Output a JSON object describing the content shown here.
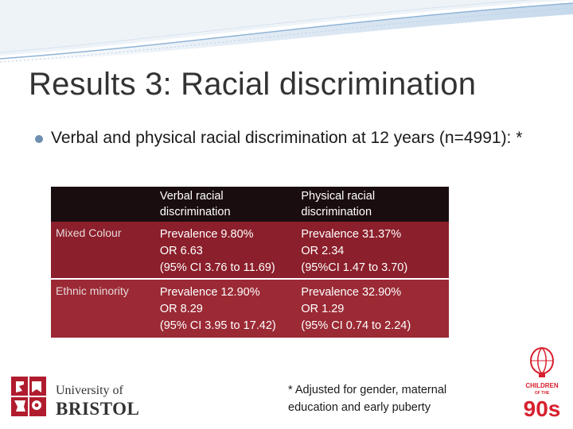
{
  "slide": {
    "title": "Results 3: Racial discrimination",
    "bullet": "Verbal and physical racial discrimination at 12 years (n=4991): *"
  },
  "table": {
    "header": [
      "",
      "Verbal racial discrimination",
      "Physical racial discrimination"
    ],
    "rows": [
      {
        "label": "Mixed Colour",
        "verbal": [
          "Prevalence  9.80%",
          "OR 6.63",
          "(95% CI 3.76 to 11.69)"
        ],
        "physical": [
          "Prevalence 31.37%",
          "OR 2.34",
          "(95%CI 1.47 to 3.70)"
        ]
      },
      {
        "label": "Ethnic minority",
        "verbal": [
          "Prevalence  12.90%",
          "OR 8.29",
          "(95% CI 3.95 to 17.42)"
        ],
        "physical": [
          "Prevalence 32.90%",
          "OR 1.29",
          "(95% CI 0.74 to 2.24)"
        ]
      }
    ]
  },
  "footnote": "* Adjusted for gender, maternal education and early puberty",
  "logos": {
    "bristol": [
      "University of",
      "BRISTOL"
    ],
    "children90s": [
      "CHILDREN",
      "OF THE",
      "90s"
    ]
  },
  "colors": {
    "table_header": "#1a0d0f",
    "table_row": "#8b1f2b",
    "bristol_red": "#b01c2e",
    "banner_blue": "#8fb4d6"
  }
}
